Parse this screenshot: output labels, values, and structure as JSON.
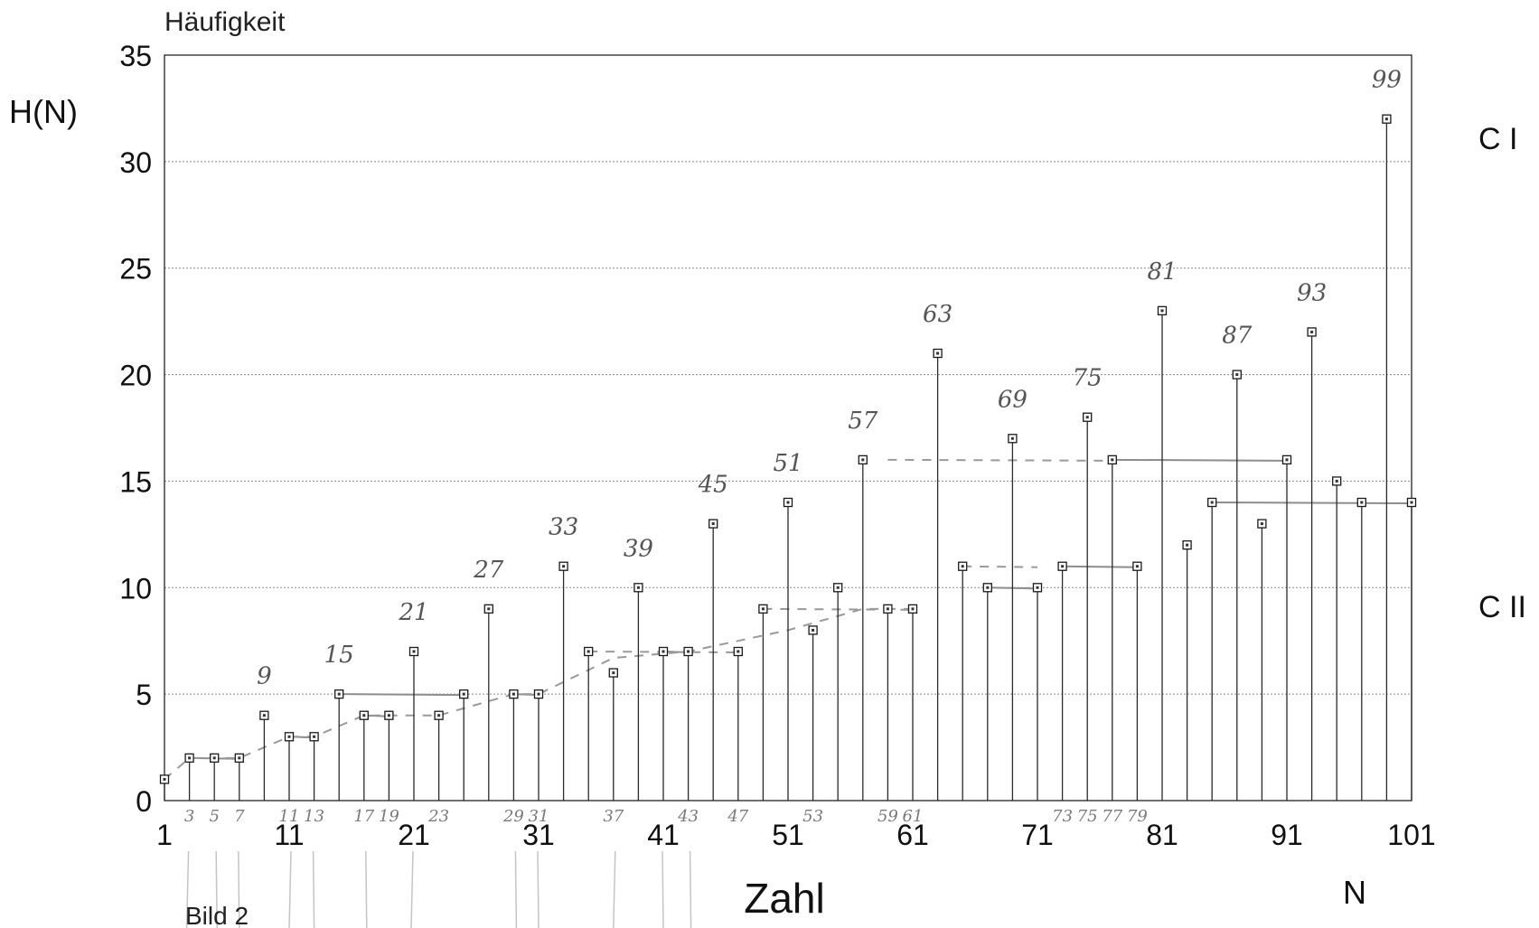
{
  "chart_data": {
    "type": "bar",
    "title": "Häufigkeit",
    "ylabel": "H(N)",
    "xlabel": "Zahl",
    "xlabel_right": "N",
    "figure_label": "Bild 2",
    "side_labels": [
      "C I",
      "C II"
    ],
    "xlim": [
      1,
      101
    ],
    "ylim": [
      0,
      35
    ],
    "yticks": [
      0,
      5,
      10,
      15,
      20,
      25,
      30,
      35
    ],
    "xticks": [
      1,
      11,
      21,
      31,
      41,
      51,
      61,
      71,
      81,
      91,
      101
    ],
    "grid": true,
    "x": [
      1,
      3,
      5,
      7,
      9,
      11,
      13,
      15,
      17,
      19,
      21,
      23,
      25,
      27,
      29,
      31,
      33,
      35,
      37,
      39,
      41,
      43,
      45,
      47,
      49,
      51,
      53,
      55,
      57,
      59,
      61,
      63,
      65,
      67,
      69,
      71,
      73,
      75,
      77,
      79,
      81,
      83,
      85,
      87,
      89,
      91,
      93,
      95,
      97,
      99,
      101
    ],
    "values": [
      1,
      2,
      2,
      2,
      4,
      3,
      3,
      5,
      4,
      4,
      7,
      4,
      5,
      9,
      5,
      5,
      11,
      7,
      6,
      10,
      7,
      7,
      13,
      7,
      9,
      14,
      8,
      10,
      16,
      9,
      9,
      21,
      11,
      10,
      17,
      10,
      11,
      18,
      16,
      11,
      23,
      12,
      14,
      20,
      13,
      16,
      22,
      15,
      14,
      32,
      14
    ],
    "top_annotations": [
      "9",
      "15",
      "21",
      "27",
      "33",
      "39",
      "45",
      "51",
      "57",
      "63",
      "69",
      "75",
      "81",
      "87",
      "93",
      "99"
    ],
    "bottom_annotations": [
      "3",
      "5",
      "7",
      "11",
      "13",
      "17",
      "19",
      "23",
      "29",
      "31",
      "37",
      "43",
      "47",
      "53",
      "59",
      "61",
      "73",
      "75",
      "77",
      "79"
    ]
  }
}
